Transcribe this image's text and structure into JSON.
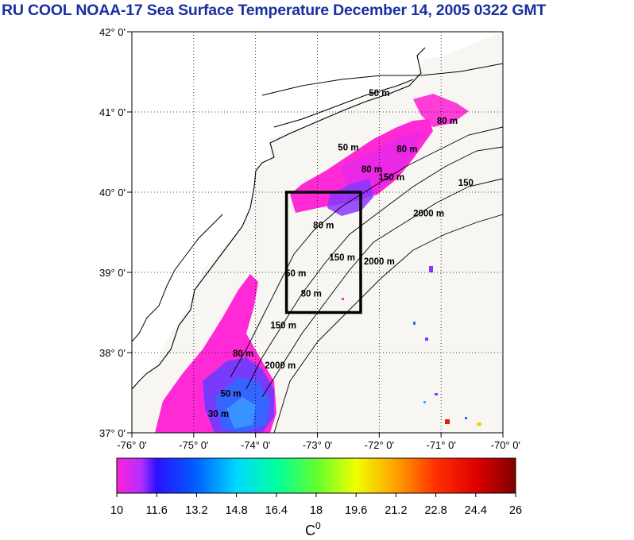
{
  "chart_data": {
    "type": "heatmap",
    "title": "RU COOL  NOAA-17 Sea Surface Temperature December 14, 2005 0322 GMT",
    "x_axis": {
      "range": [
        -76,
        -70
      ],
      "ticks": [
        -76,
        -75,
        -74,
        -73,
        -72,
        -71,
        -70
      ],
      "tick_labels": [
        "-76° 0'",
        "-75° 0'",
        "-74° 0'",
        "-73° 0'",
        "-72° 0'",
        "-71° 0'",
        "-70° 0'"
      ]
    },
    "y_axis": {
      "range": [
        37,
        42
      ],
      "ticks": [
        37,
        38,
        39,
        40,
        41,
        42
      ],
      "tick_labels": [
        "37° 0'",
        "38° 0'",
        "39° 0'",
        "40° 0'",
        "41° 0'",
        "42° 0'"
      ]
    },
    "grid": "dotted",
    "study_box": {
      "lon": [
        -73.5,
        -72.3
      ],
      "lat": [
        38.5,
        40.0
      ]
    },
    "colorbar": {
      "unit": "C",
      "unit_superscript": "0",
      "range": [
        10,
        26
      ],
      "ticks": [
        10,
        11.6,
        13.2,
        14.8,
        16.4,
        18,
        19.6,
        21.2,
        22.8,
        24.4,
        26
      ],
      "tick_labels": [
        "10",
        "11.6",
        "13.2",
        "14.8",
        "16.4",
        "18",
        "19.6",
        "21.2",
        "22.8",
        "24.4",
        "26"
      ],
      "stops": [
        {
          "value": 10,
          "color": "#ff20d8"
        },
        {
          "value": 11.0,
          "color": "#b030ff"
        },
        {
          "value": 11.6,
          "color": "#2a10ff"
        },
        {
          "value": 13.2,
          "color": "#0060ff"
        },
        {
          "value": 14.8,
          "color": "#00d8ff"
        },
        {
          "value": 16.4,
          "color": "#00ffa0"
        },
        {
          "value": 18,
          "color": "#60ff30"
        },
        {
          "value": 19.6,
          "color": "#f0ff00"
        },
        {
          "value": 21.2,
          "color": "#ffa000"
        },
        {
          "value": 22.8,
          "color": "#ff3000"
        },
        {
          "value": 24.4,
          "color": "#e00000"
        },
        {
          "value": 26,
          "color": "#800000"
        }
      ]
    },
    "contour_labels": [
      {
        "text": "50 m",
        "lon": -72.0,
        "lat": 41.2
      },
      {
        "text": "50 m",
        "lon": -72.5,
        "lat": 40.52
      },
      {
        "text": "80 m",
        "lon": -71.55,
        "lat": 40.5
      },
      {
        "text": "80 m",
        "lon": -72.12,
        "lat": 40.25
      },
      {
        "text": "150 m",
        "lon": -71.8,
        "lat": 40.15
      },
      {
        "text": "150",
        "lon": -70.6,
        "lat": 40.08
      },
      {
        "text": "80 m",
        "lon": -70.9,
        "lat": 40.85
      },
      {
        "text": "2000 m",
        "lon": -71.2,
        "lat": 39.7
      },
      {
        "text": "2000 m",
        "lon": -72.0,
        "lat": 39.1
      },
      {
        "text": "150 m",
        "lon": -72.6,
        "lat": 39.15
      },
      {
        "text": "80 m",
        "lon": -72.9,
        "lat": 39.55
      },
      {
        "text": "50 m",
        "lon": -73.35,
        "lat": 38.95
      },
      {
        "text": "80 m",
        "lon": -73.1,
        "lat": 38.7
      },
      {
        "text": "150 m",
        "lon": -73.55,
        "lat": 38.3
      },
      {
        "text": "2000 m",
        "lon": -73.6,
        "lat": 37.8
      },
      {
        "text": "80 m",
        "lon": -74.2,
        "lat": 37.95
      },
      {
        "text": "50 m",
        "lon": -74.4,
        "lat": 37.45
      },
      {
        "text": "30 m",
        "lon": -74.6,
        "lat": 37.2
      }
    ]
  }
}
